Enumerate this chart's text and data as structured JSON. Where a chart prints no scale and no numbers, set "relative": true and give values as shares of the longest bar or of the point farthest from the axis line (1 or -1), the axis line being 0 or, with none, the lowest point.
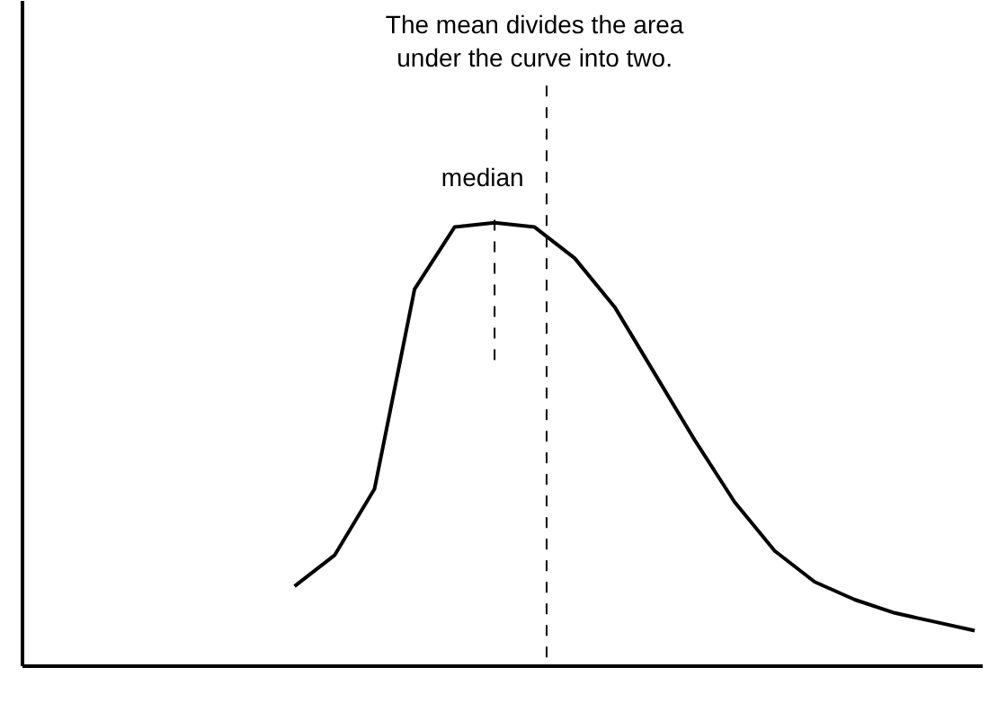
{
  "chart_data": {
    "type": "line",
    "relative": true,
    "categories": [
      null,
      null,
      null,
      null,
      null,
      null,
      null,
      null,
      null,
      null,
      null,
      null,
      null,
      null,
      null,
      null,
      null,
      null
    ],
    "series": [
      {
        "color": "#000000",
        "values": [
          0.18,
          0.25,
          0.4,
          0.85,
          0.99,
          1.0,
          0.99,
          0.92,
          0.81,
          0.66,
          0.51,
          0.37,
          0.26,
          0.19,
          0.15,
          0.12,
          0.1,
          0.08
        ]
      }
    ],
    "marker": "none",
    "line_style": "solid",
    "annotations": [
      "median",
      "The mean divides the area\nunder the curve into two."
    ]
  }
}
